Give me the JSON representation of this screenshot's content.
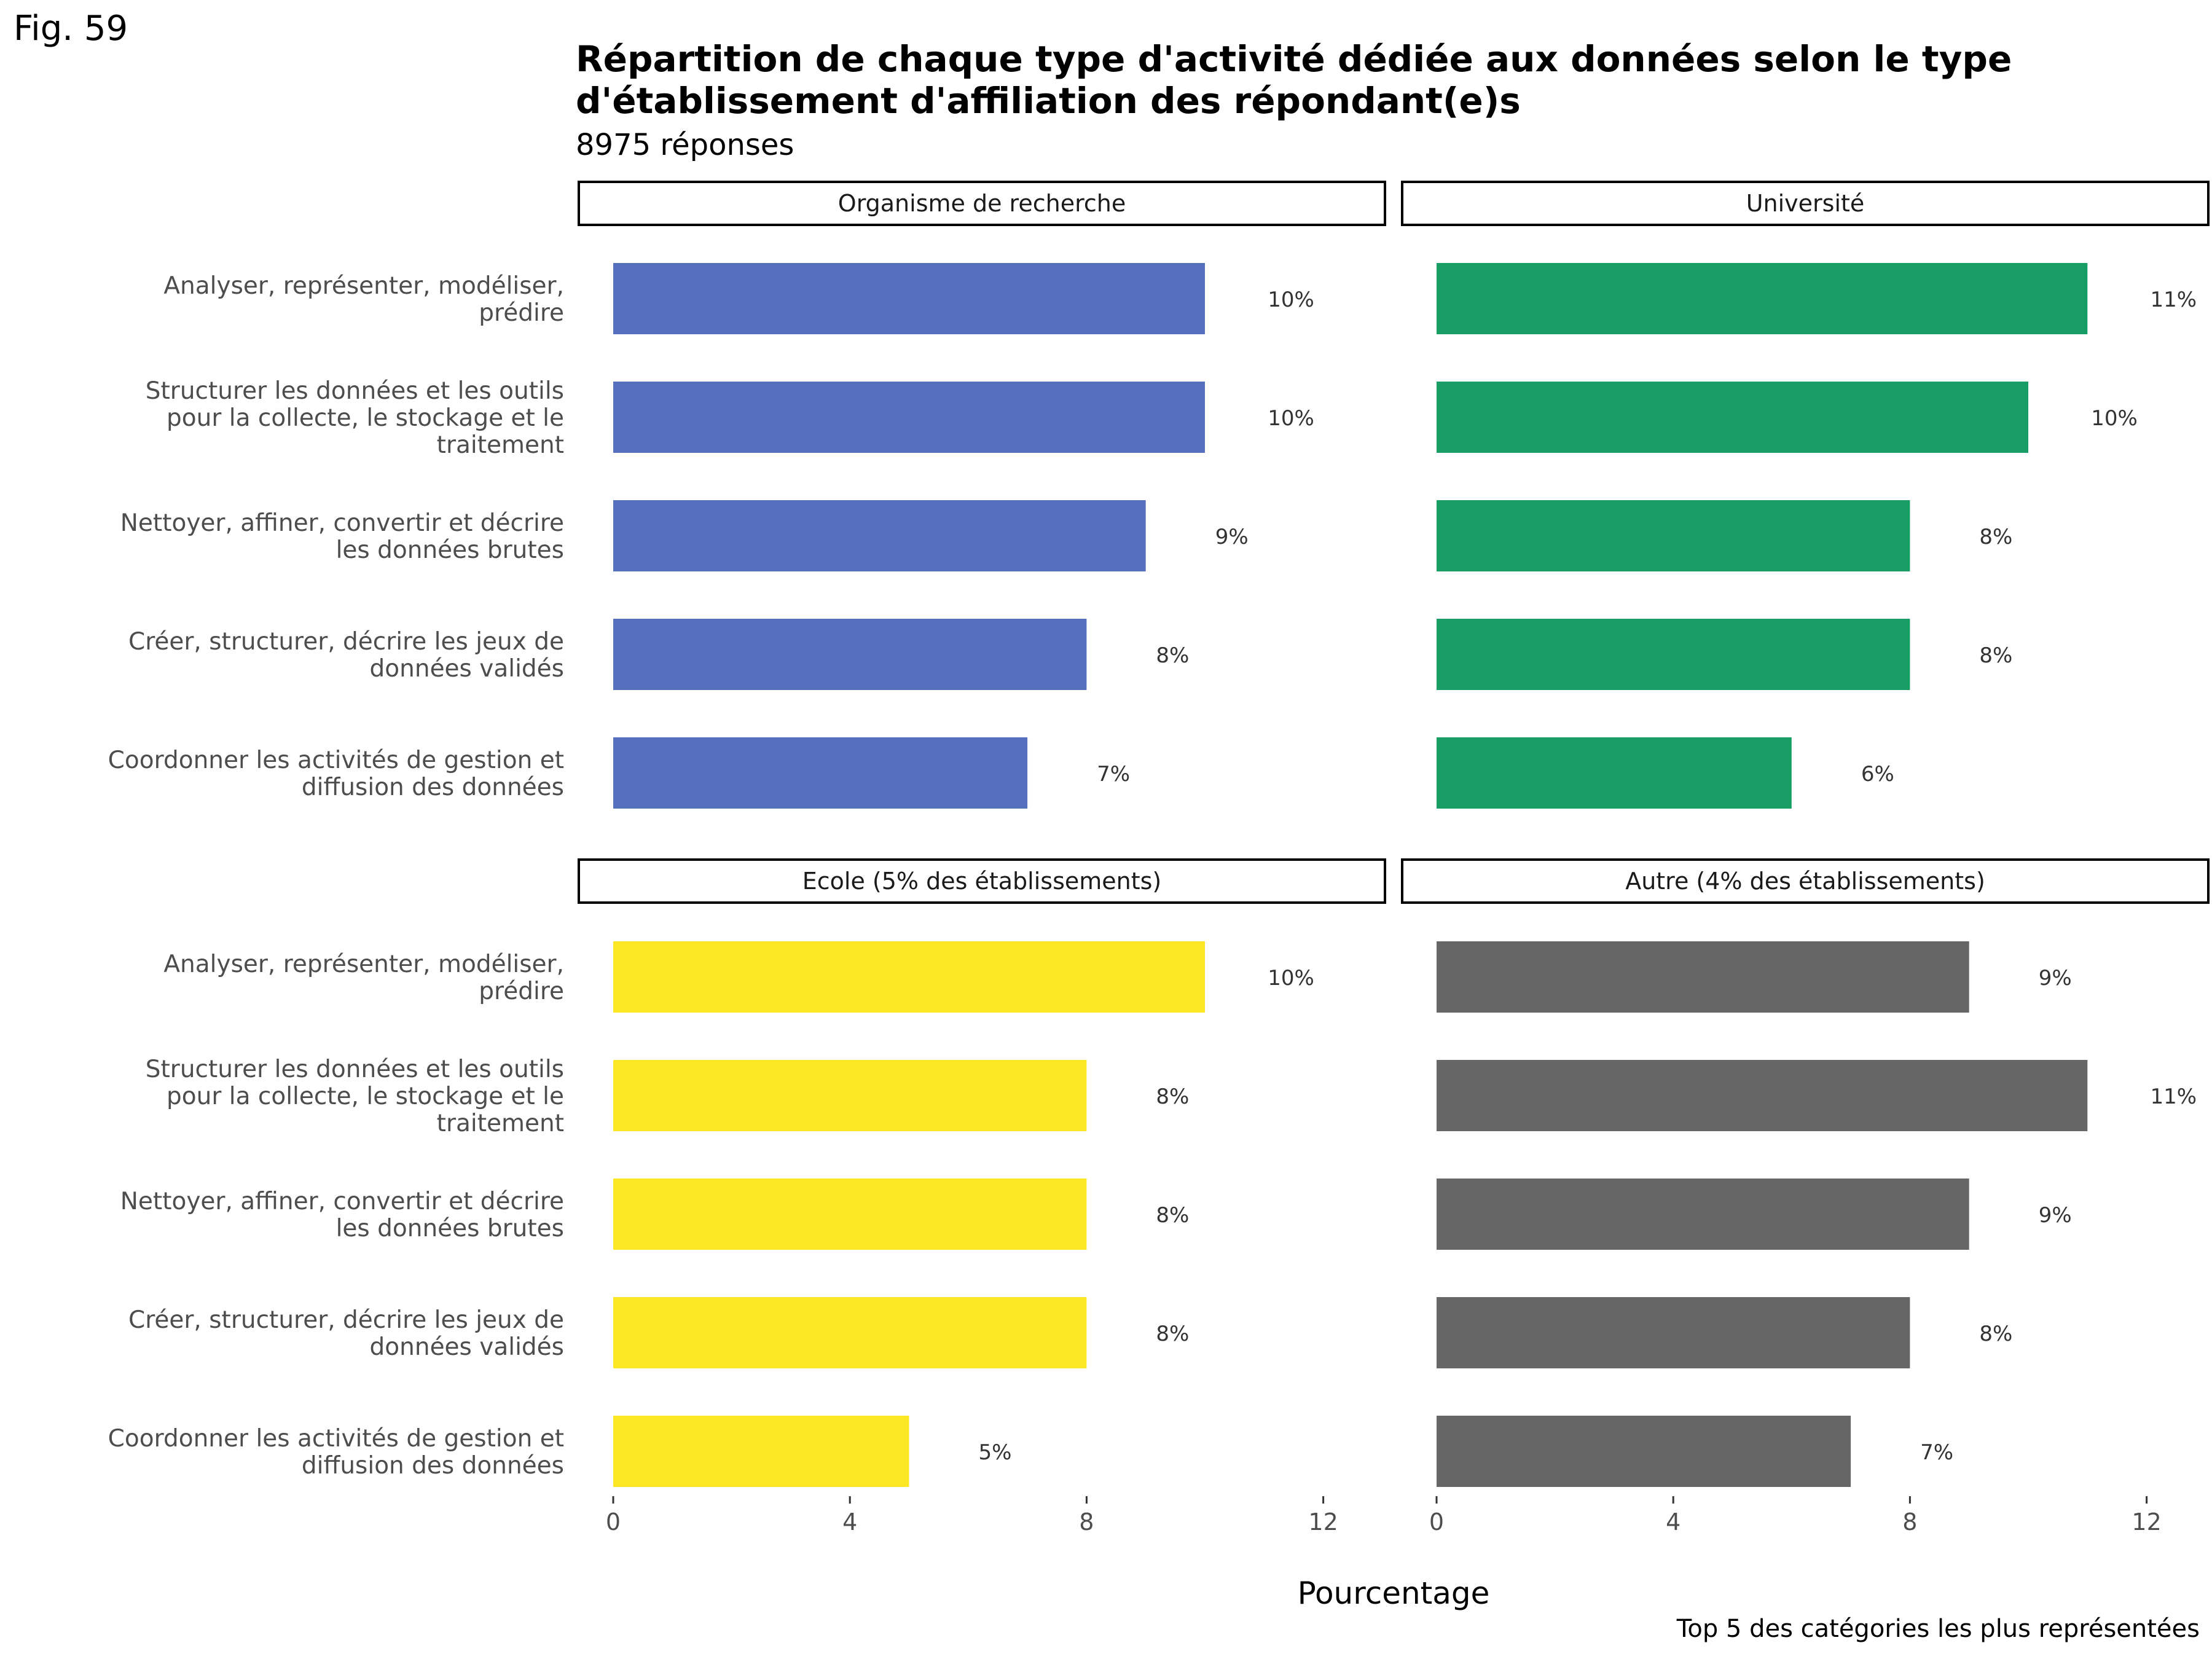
{
  "figure_label": "Fig. 59",
  "caption": "Top 5 des catégories les plus représentées",
  "chart_data": {
    "type": "bar",
    "orientation": "horizontal",
    "title": "Répartition de chaque type d'activité dédiée aux données selon le type d'établissement d'affiliation des répondant(e)s",
    "subtitle": "8975 réponses",
    "xlabel": "Pourcentage",
    "ylabel": "",
    "xlim": [
      0,
      13
    ],
    "xticks": [
      0,
      4,
      8,
      12
    ],
    "grid": false,
    "legend": "none",
    "categories": [
      [
        "Analyser, représenter, modéliser,",
        "prédire"
      ],
      [
        "Structurer les données et les outils",
        "pour la collecte, le stockage et le",
        "traitement"
      ],
      [
        "Nettoyer, affiner, convertir et décrire",
        "les données brutes"
      ],
      [
        "Créer, structurer, décrire les jeux de",
        "données validés"
      ],
      [
        "Coordonner les activités de gestion et",
        "diffusion des données"
      ]
    ],
    "panels": [
      {
        "name": "Organisme de recherche",
        "color": "#5571bd",
        "values": [
          10,
          10,
          9,
          8,
          7
        ],
        "labels": [
          "10%",
          "10%",
          "9%",
          "8%",
          "7%"
        ]
      },
      {
        "name": "Université",
        "color": "#189e64",
        "values": [
          11,
          10,
          8,
          8,
          6
        ],
        "labels": [
          "11%",
          "10%",
          "8%",
          "8%",
          "6%"
        ]
      },
      {
        "name": "Ecole (5% des établissements)",
        "color": "#fde725",
        "values": [
          10,
          8,
          8,
          8,
          5
        ],
        "labels": [
          "10%",
          "8%",
          "8%",
          "8%",
          "5%"
        ]
      },
      {
        "name": "Autre (4% des établissements)",
        "color": "#666666",
        "values": [
          9,
          11,
          9,
          8,
          7
        ],
        "labels": [
          "9%",
          "11%",
          "9%",
          "8%",
          "7%"
        ]
      }
    ]
  }
}
